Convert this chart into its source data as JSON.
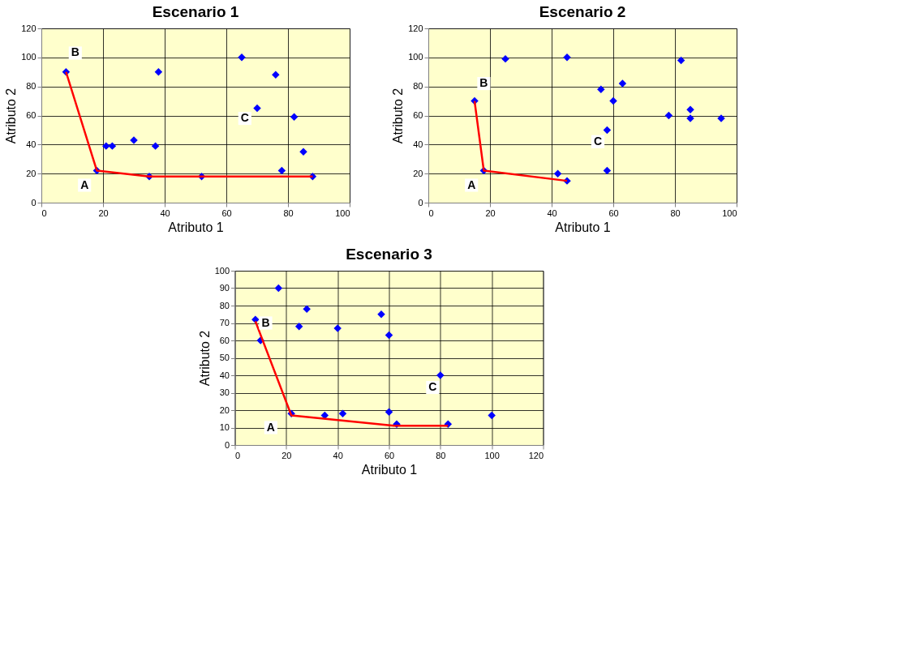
{
  "chart_data": [
    {
      "type": "scatter",
      "title": "Escenario 1",
      "xlabel": "Atributo 1",
      "ylabel": "Atributo 2",
      "xlim": [
        0,
        100
      ],
      "ylim": [
        0,
        120
      ],
      "xticks": [
        0,
        20,
        40,
        60,
        80,
        100
      ],
      "yticks": [
        0,
        20,
        40,
        60,
        80,
        100,
        120
      ],
      "grid": true,
      "series": [
        {
          "color": "#0000ff",
          "marker": "diamond",
          "x": [
            8,
            18,
            21,
            23,
            30,
            37,
            35,
            38,
            52,
            65,
            70,
            76,
            82,
            78,
            85,
            88
          ],
          "values": [
            90,
            22,
            39,
            39,
            43,
            39,
            18,
            90,
            18,
            100,
            65,
            88,
            59,
            22,
            35,
            18
          ]
        },
        {
          "type": "line",
          "color": "#ff0000",
          "marker": "none",
          "line_style": "solid",
          "x": [
            8,
            18,
            35,
            88
          ],
          "values": [
            90,
            22,
            18,
            18
          ]
        }
      ],
      "annotations": [
        {
          "text": "B",
          "x": 11,
          "y": 103
        },
        {
          "text": "A",
          "x": 14,
          "y": 12
        },
        {
          "text": "C",
          "x": 66,
          "y": 58
        }
      ]
    },
    {
      "type": "scatter",
      "title": "Escenario 2",
      "xlabel": "Atributo 1",
      "ylabel": "Atributo 2",
      "xlim": [
        0,
        100
      ],
      "ylim": [
        0,
        120
      ],
      "xticks": [
        0,
        20,
        40,
        60,
        80,
        100
      ],
      "yticks": [
        0,
        20,
        40,
        60,
        80,
        100,
        120
      ],
      "grid": true,
      "series": [
        {
          "color": "#0000ff",
          "marker": "diamond",
          "x": [
            15,
            18,
            25,
            42,
            45,
            45,
            56,
            58,
            58,
            60,
            63,
            78,
            82,
            85,
            85,
            95
          ],
          "values": [
            70,
            22,
            99,
            20,
            15,
            100,
            78,
            50,
            22,
            70,
            82,
            60,
            98,
            64,
            58,
            58
          ]
        },
        {
          "type": "line",
          "color": "#ff0000",
          "marker": "none",
          "line_style": "solid",
          "x": [
            15,
            18,
            45
          ],
          "values": [
            70,
            22,
            15
          ]
        }
      ],
      "annotations": [
        {
          "text": "B",
          "x": 18,
          "y": 82
        },
        {
          "text": "A",
          "x": 14,
          "y": 12
        },
        {
          "text": "C",
          "x": 55,
          "y": 42
        }
      ]
    },
    {
      "type": "scatter",
      "title": "Escenario 3",
      "xlabel": "Atributo 1",
      "ylabel": "Atributo 2",
      "xlim": [
        0,
        120
      ],
      "ylim": [
        0,
        100
      ],
      "xticks": [
        0,
        20,
        40,
        60,
        80,
        100,
        120
      ],
      "yticks": [
        0,
        10,
        20,
        30,
        40,
        50,
        60,
        70,
        80,
        90,
        100
      ],
      "grid": true,
      "series": [
        {
          "color": "#0000ff",
          "marker": "diamond",
          "x": [
            8,
            10,
            17,
            22,
            25,
            28,
            35,
            40,
            42,
            57,
            60,
            60,
            63,
            80,
            83,
            100
          ],
          "values": [
            72,
            60,
            90,
            18,
            68,
            78,
            17,
            67,
            18,
            75,
            63,
            19,
            12,
            40,
            12,
            17
          ]
        },
        {
          "type": "line",
          "color": "#ff0000",
          "marker": "none",
          "line_style": "solid",
          "x": [
            8,
            22,
            62,
            83
          ],
          "values": [
            71,
            17,
            11,
            11
          ]
        }
      ],
      "annotations": [
        {
          "text": "B",
          "x": 12,
          "y": 70
        },
        {
          "text": "A",
          "x": 14,
          "y": 10
        },
        {
          "text": "C",
          "x": 77,
          "y": 33
        }
      ]
    }
  ]
}
